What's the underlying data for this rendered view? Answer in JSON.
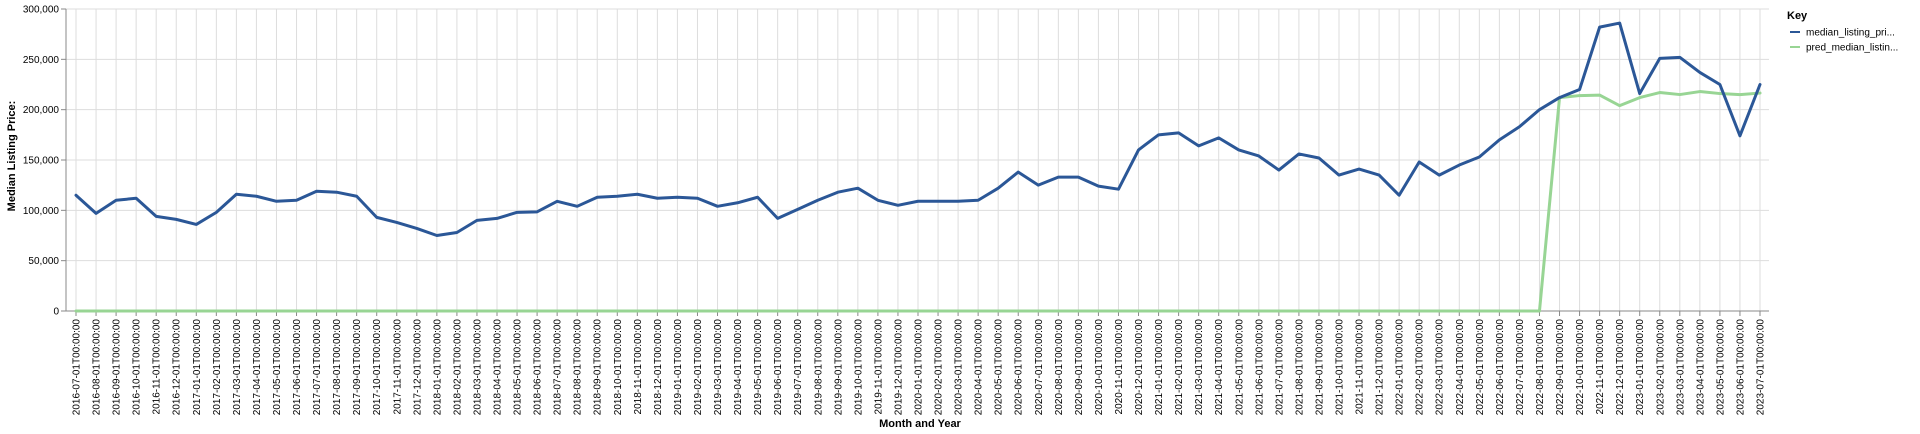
{
  "chart_data": {
    "type": "line",
    "xlabel": "Month and Year",
    "ylabel": "Median Listing Price:",
    "ylim": [
      0,
      300000
    ],
    "y_ticks": [
      "0",
      "50,000",
      "100,000",
      "150,000",
      "200,000",
      "250,000",
      "300,000"
    ],
    "grid": true,
    "legend": {
      "title": "Key",
      "placement": "top-right"
    },
    "x": [
      "2016-07-01T00:00:00",
      "2016-08-01T00:00:00",
      "2016-09-01T00:00:00",
      "2016-10-01T00:00:00",
      "2016-11-01T00:00:00",
      "2016-12-01T00:00:00",
      "2017-01-01T00:00:00",
      "2017-02-01T00:00:00",
      "2017-03-01T00:00:00",
      "2017-04-01T00:00:00",
      "2017-05-01T00:00:00",
      "2017-06-01T00:00:00",
      "2017-07-01T00:00:00",
      "2017-08-01T00:00:00",
      "2017-09-01T00:00:00",
      "2017-10-01T00:00:00",
      "2017-11-01T00:00:00",
      "2017-12-01T00:00:00",
      "2018-01-01T00:00:00",
      "2018-02-01T00:00:00",
      "2018-03-01T00:00:00",
      "2018-04-01T00:00:00",
      "2018-05-01T00:00:00",
      "2018-06-01T00:00:00",
      "2018-07-01T00:00:00",
      "2018-08-01T00:00:00",
      "2018-09-01T00:00:00",
      "2018-10-01T00:00:00",
      "2018-11-01T00:00:00",
      "2018-12-01T00:00:00",
      "2019-01-01T00:00:00",
      "2019-02-01T00:00:00",
      "2019-03-01T00:00:00",
      "2019-04-01T00:00:00",
      "2019-05-01T00:00:00",
      "2019-06-01T00:00:00",
      "2019-07-01T00:00:00",
      "2019-08-01T00:00:00",
      "2019-09-01T00:00:00",
      "2019-10-01T00:00:00",
      "2019-11-01T00:00:00",
      "2019-12-01T00:00:00",
      "2020-01-01T00:00:00",
      "2020-02-01T00:00:00",
      "2020-03-01T00:00:00",
      "2020-04-01T00:00:00",
      "2020-05-01T00:00:00",
      "2020-06-01T00:00:00",
      "2020-07-01T00:00:00",
      "2020-08-01T00:00:00",
      "2020-09-01T00:00:00",
      "2020-10-01T00:00:00",
      "2020-11-01T00:00:00",
      "2020-12-01T00:00:00",
      "2021-01-01T00:00:00",
      "2021-02-01T00:00:00",
      "2021-03-01T00:00:00",
      "2021-04-01T00:00:00",
      "2021-05-01T00:00:00",
      "2021-06-01T00:00:00",
      "2021-07-01T00:00:00",
      "2021-08-01T00:00:00",
      "2021-09-01T00:00:00",
      "2021-10-01T00:00:00",
      "2021-11-01T00:00:00",
      "2021-12-01T00:00:00",
      "2022-01-01T00:00:00",
      "2022-02-01T00:00:00",
      "2022-03-01T00:00:00",
      "2022-04-01T00:00:00",
      "2022-05-01T00:00:00",
      "2022-06-01T00:00:00",
      "2022-07-01T00:00:00",
      "2022-08-01T00:00:00",
      "2022-09-01T00:00:00",
      "2022-10-01T00:00:00",
      "2022-11-01T00:00:00",
      "2022-12-01T00:00:00",
      "2023-01-01T00:00:00",
      "2023-02-01T00:00:00",
      "2023-03-01T00:00:00",
      "2023-04-01T00:00:00",
      "2023-05-01T00:00:00",
      "2023-06-01T00:00:00",
      "2023-07-01T00:00:00"
    ],
    "series": [
      {
        "name": "median_listing_pri...",
        "color": "#2b5797",
        "values": [
          115000,
          97000,
          110000,
          112000,
          94000,
          91000,
          86000,
          98000,
          116000,
          114000,
          109000,
          110000,
          119000,
          118000,
          114000,
          93000,
          88000,
          82000,
          75000,
          78000,
          90000,
          92000,
          98000,
          98500,
          109000,
          104000,
          113000,
          114000,
          116000,
          112000,
          113000,
          112000,
          104000,
          107500,
          113000,
          92000,
          101000,
          110000,
          118000,
          122000,
          110000,
          105000,
          109000,
          109000,
          109000,
          110000,
          122000,
          138000,
          125000,
          133000,
          133000,
          124000,
          121000,
          160000,
          175000,
          177000,
          164000,
          172000,
          160000,
          154000,
          140000,
          156000,
          152000,
          135000,
          141000,
          135000,
          115000,
          148000,
          135000,
          145000,
          153000,
          170000,
          183000,
          200000,
          212000,
          220000,
          282000,
          286000,
          216000,
          251000,
          252000,
          237000,
          225000,
          174000,
          225000
        ]
      },
      {
        "name": "pred_median_listin...",
        "color": "#98d594",
        "values": [
          0,
          0,
          0,
          0,
          0,
          0,
          0,
          0,
          0,
          0,
          0,
          0,
          0,
          0,
          0,
          0,
          0,
          0,
          0,
          0,
          0,
          0,
          0,
          0,
          0,
          0,
          0,
          0,
          0,
          0,
          0,
          0,
          0,
          0,
          0,
          0,
          0,
          0,
          0,
          0,
          0,
          0,
          0,
          0,
          0,
          0,
          0,
          0,
          0,
          0,
          0,
          0,
          0,
          0,
          0,
          0,
          0,
          0,
          0,
          0,
          0,
          0,
          0,
          0,
          0,
          0,
          0,
          0,
          0,
          0,
          0,
          0,
          0,
          0,
          212000,
          214000,
          214500,
          204000,
          212000,
          217000,
          215000,
          218000,
          216000,
          215000,
          216500
        ]
      }
    ]
  }
}
